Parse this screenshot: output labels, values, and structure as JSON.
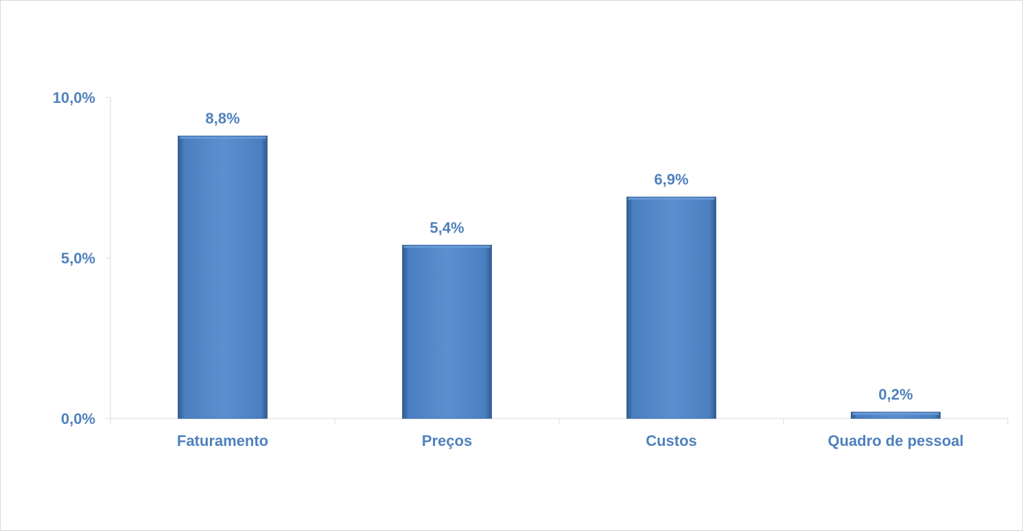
{
  "chart_data": {
    "type": "bar",
    "categories": [
      "Faturamento",
      "Preços",
      "Custos",
      "Quadro de pessoal"
    ],
    "values": [
      8.8,
      5.4,
      6.9,
      0.2
    ],
    "data_labels": [
      "8,8%",
      "5,4%",
      "6,9%",
      "0,2%"
    ],
    "yticks": [
      0,
      5,
      10
    ],
    "ytick_labels": [
      "0,0%",
      "5,0%",
      "10,0%"
    ],
    "ylim": [
      0,
      10
    ],
    "title": "",
    "xlabel": "",
    "ylabel": "",
    "grid": false,
    "legend": "none",
    "colors": {
      "bar": "#4f81bd",
      "bar_light": "#6a9bd8",
      "bar_dark": "#2f5a8f",
      "text": "#4f81bd",
      "axis": "#d9d9d9"
    }
  }
}
